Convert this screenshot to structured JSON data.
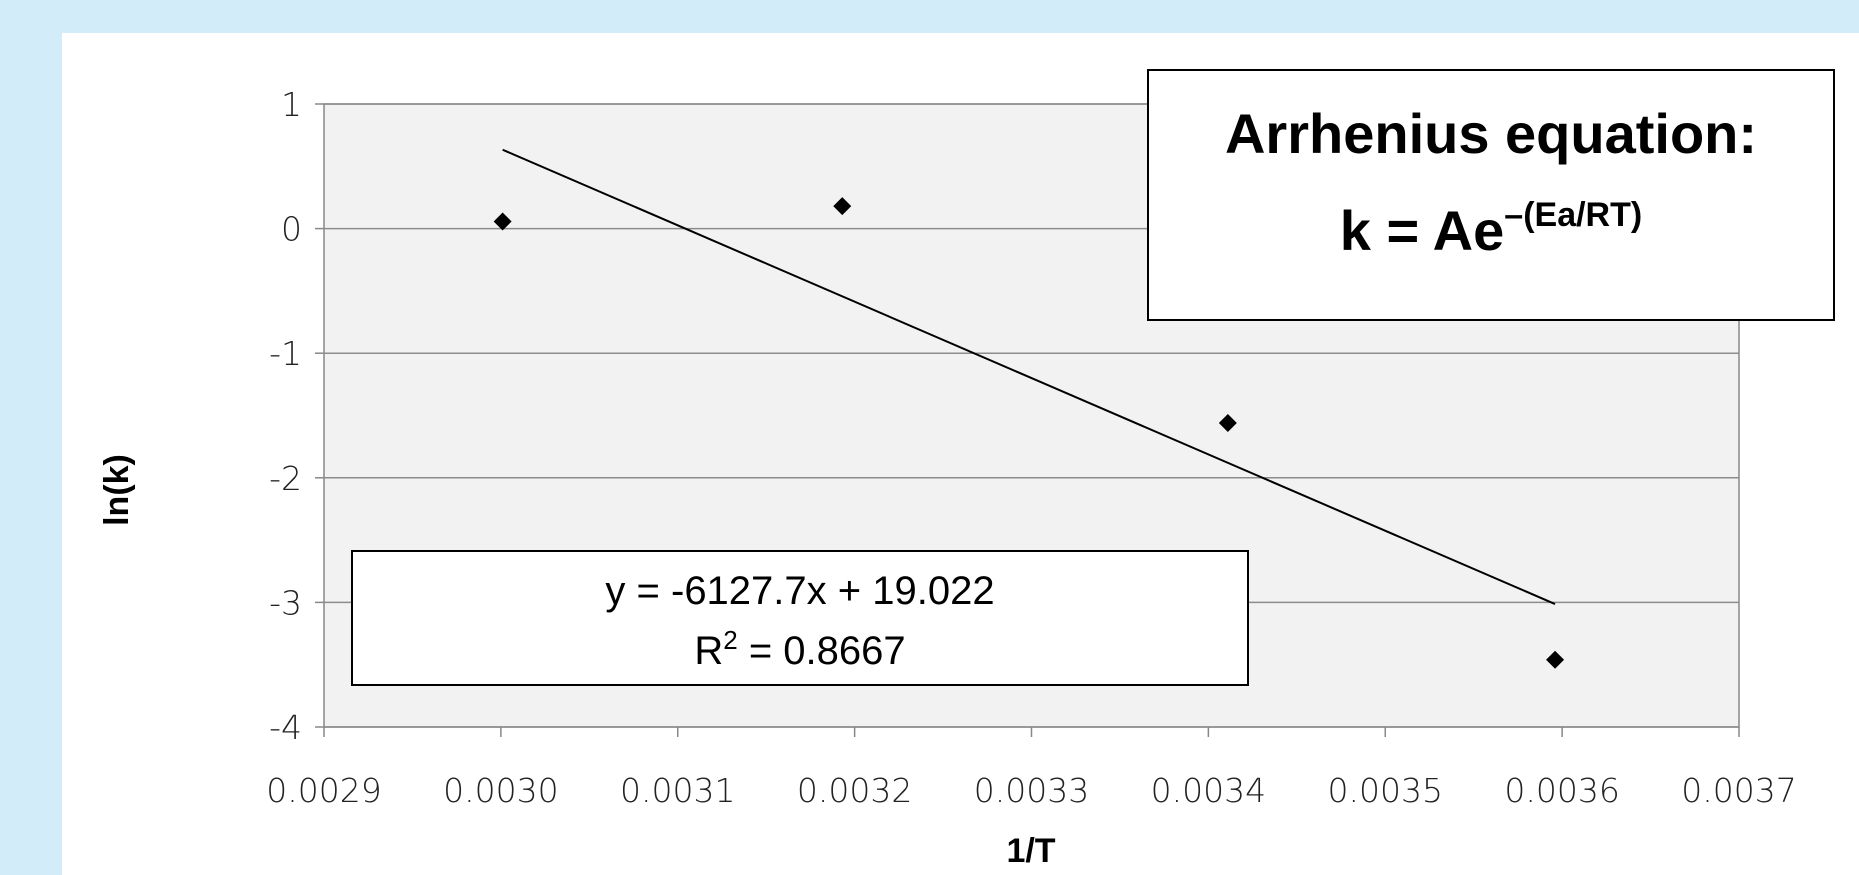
{
  "chart_data": {
    "type": "scatter",
    "x": [
      0.003001,
      0.003193,
      0.003411,
      0.003596
    ],
    "values": [
      0.057,
      0.18,
      -1.56,
      -3.46
    ],
    "color": "#000000",
    "xlim": [
      0.0029,
      0.0037
    ],
    "xticks": [
      0.0029,
      {
        "value": 0.003,
        "label": "0.0030"
      },
      0.0031,
      0.0032,
      0.0033,
      0.0034,
      0.0035,
      0.0036,
      0.0037
    ],
    "ylim": [
      -4,
      1
    ],
    "yticks": [
      -4,
      -3,
      -2,
      -1,
      0,
      1
    ],
    "grid": true,
    "xlabel": "1/T",
    "ylabel": "ln(k)",
    "trendline": {
      "slope": -6127.7,
      "intercept": 19.022,
      "equation": "y = -6127.7x + 19.022",
      "r_squared": [
        "R",
        "2",
        " = 0.8667"
      ]
    },
    "annotation": {
      "title": "Arrhenius equation:",
      "formula": "k = Ae",
      "exponent": "–(Ea/RT)"
    }
  }
}
